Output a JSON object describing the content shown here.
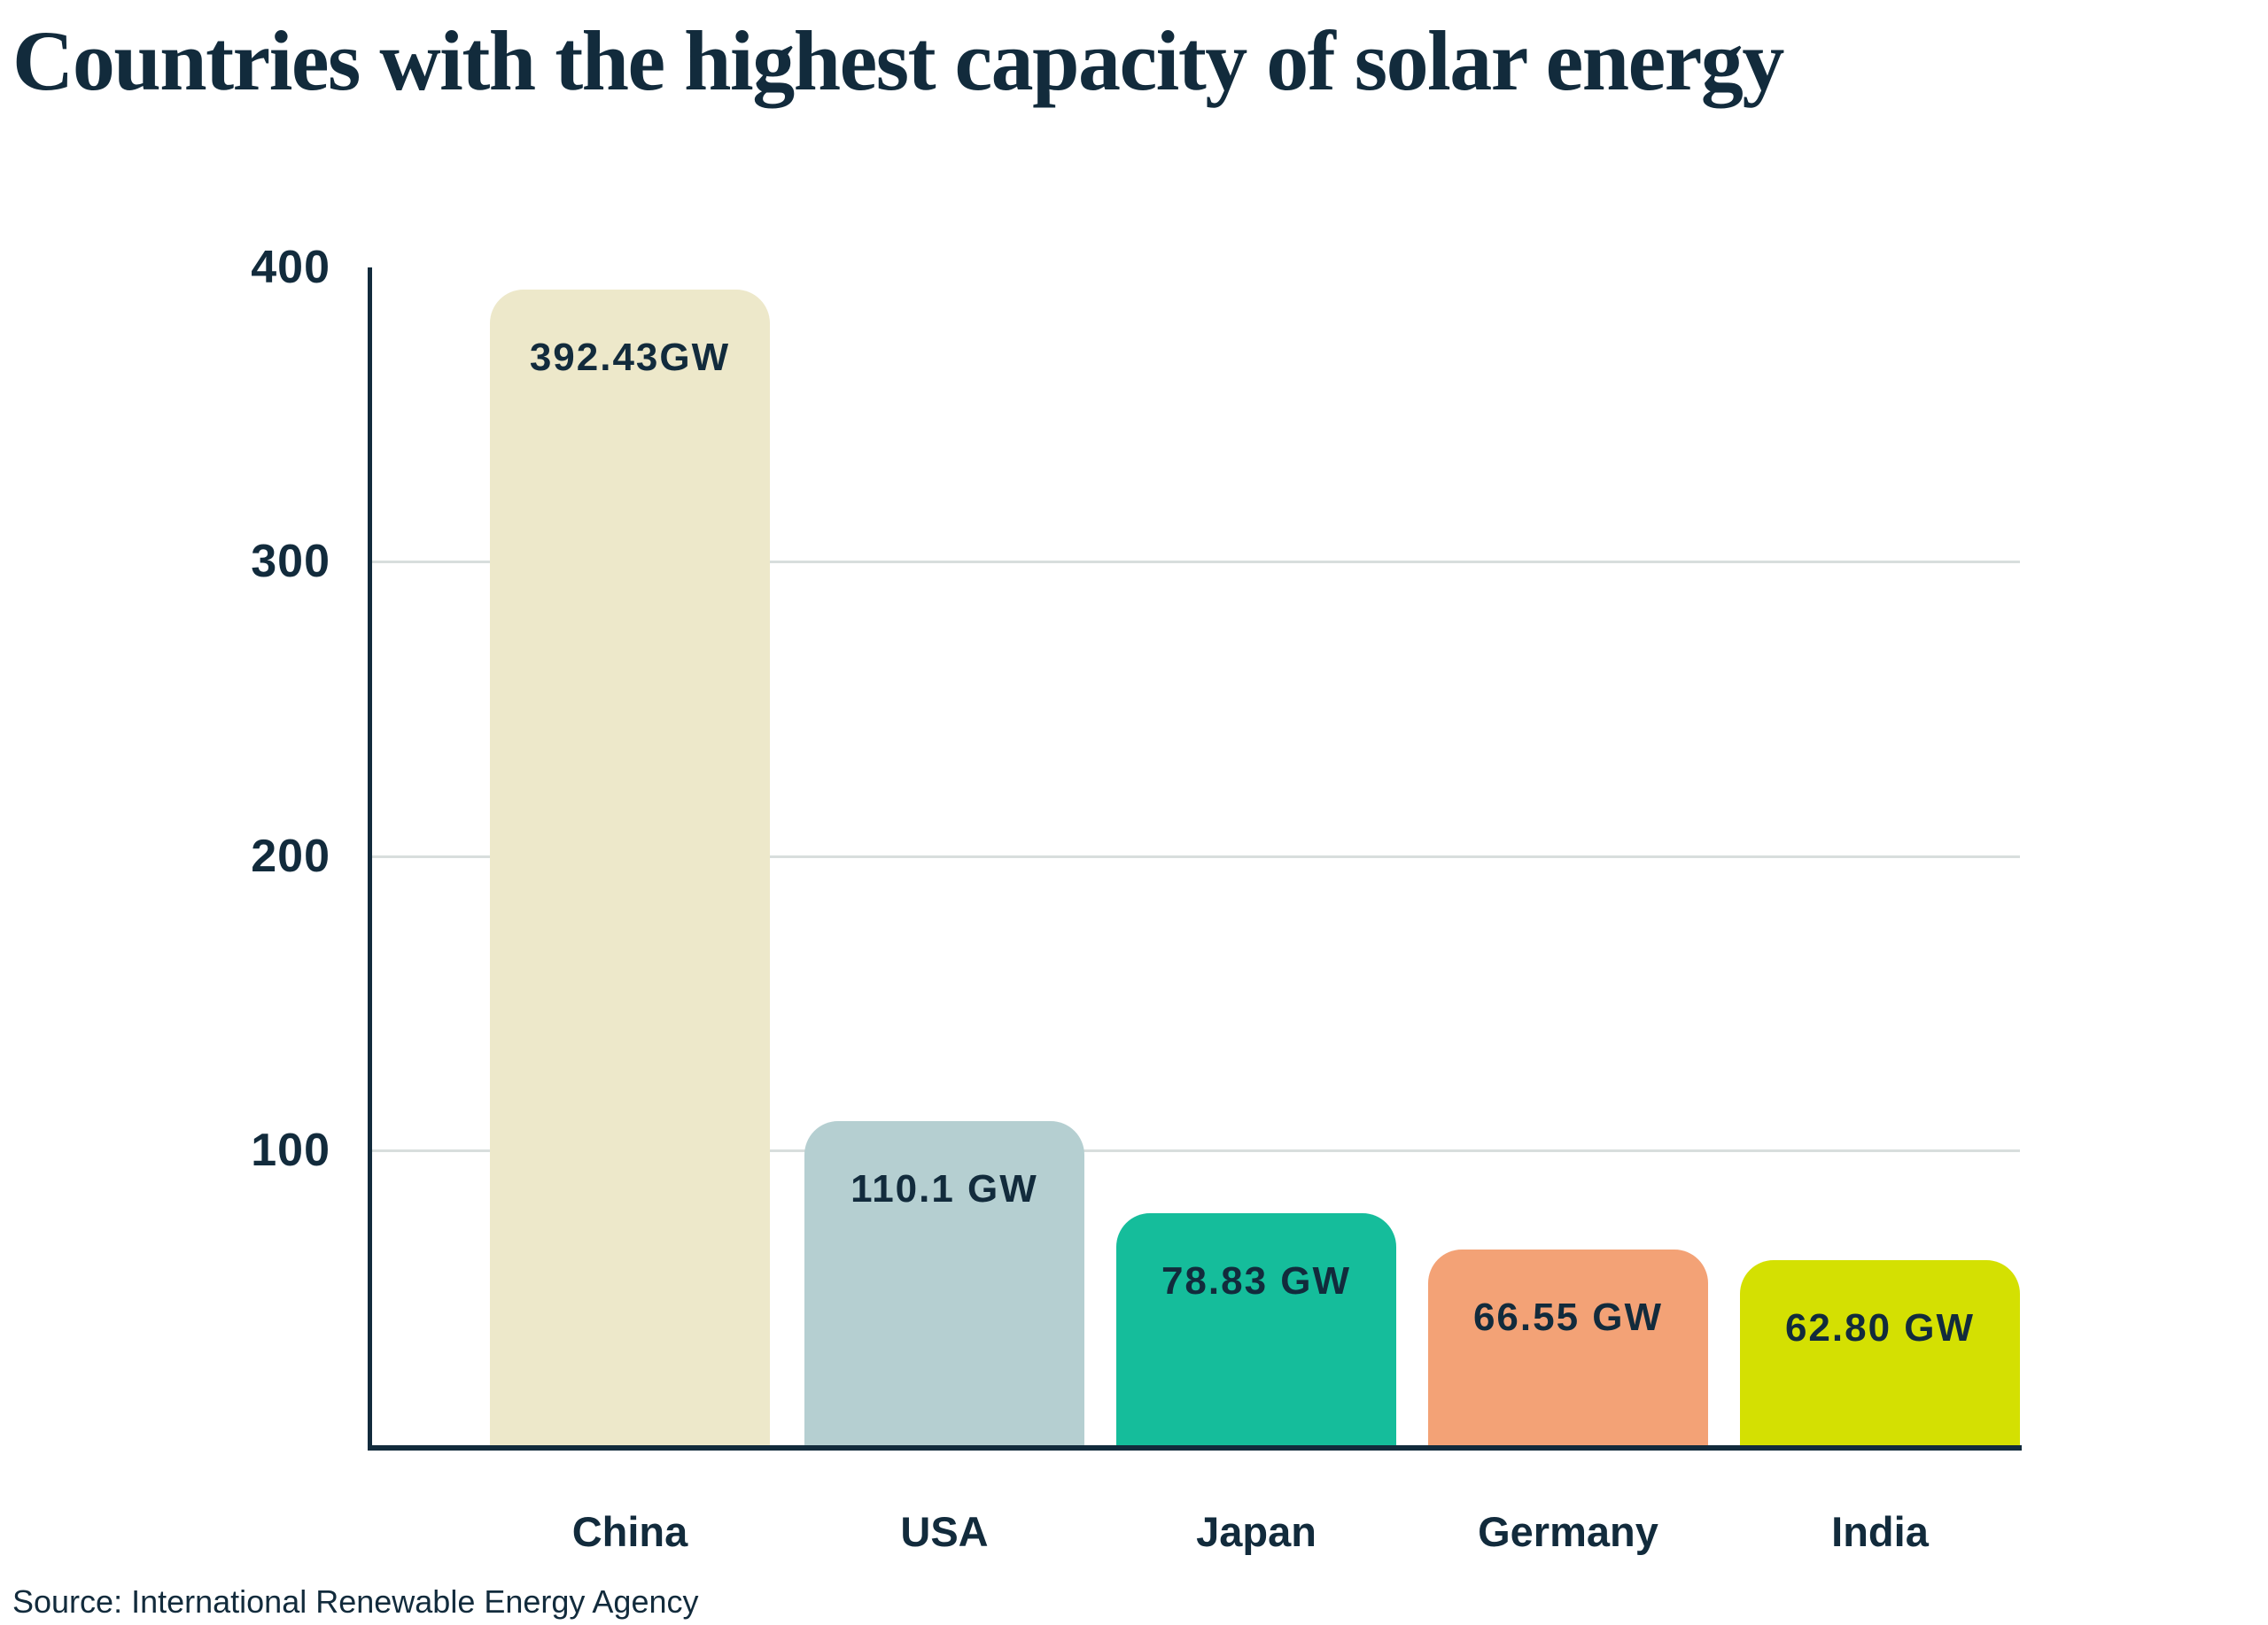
{
  "title": "Countries with the highest capacity of solar energy",
  "source_note": "Source: International Renewable Energy Agency",
  "colors": {
    "text_navy": "#122B3C",
    "axis": "#122B3C",
    "gridline": "#D8DEDD",
    "background": "#FFFFFF",
    "bar_china": "#EDE8CA",
    "bar_usa": "#B5CFD1",
    "bar_japan": "#15BD9B",
    "bar_germany": "#F3A276",
    "bar_india": "#D4E002"
  },
  "chart_data": {
    "type": "bar",
    "title": "Countries with the highest capacity of solar energy",
    "categories": [
      "China",
      "USA",
      "Japan",
      "Germany",
      "India"
    ],
    "values": [
      392.43,
      110.1,
      78.83,
      66.55,
      62.8
    ],
    "value_labels": [
      "392.43GW",
      "110.1 GW",
      "78.83 GW",
      "66.55 GW",
      "62.80 GW"
    ],
    "bar_colors": [
      "#EDE8CA",
      "#B5CFD1",
      "#15BD9B",
      "#F3A276",
      "#D4E002"
    ],
    "unit": "GW",
    "xlabel": "",
    "ylabel": "",
    "ylim": [
      0,
      400
    ],
    "yticks": [
      "400",
      "300",
      "200",
      "100"
    ],
    "ytick_values": [
      400,
      300,
      200,
      100
    ],
    "gridline_values": [
      300,
      200,
      100
    ],
    "grid": true,
    "legend": false,
    "source": "Source: International Renewable Energy Agency"
  }
}
